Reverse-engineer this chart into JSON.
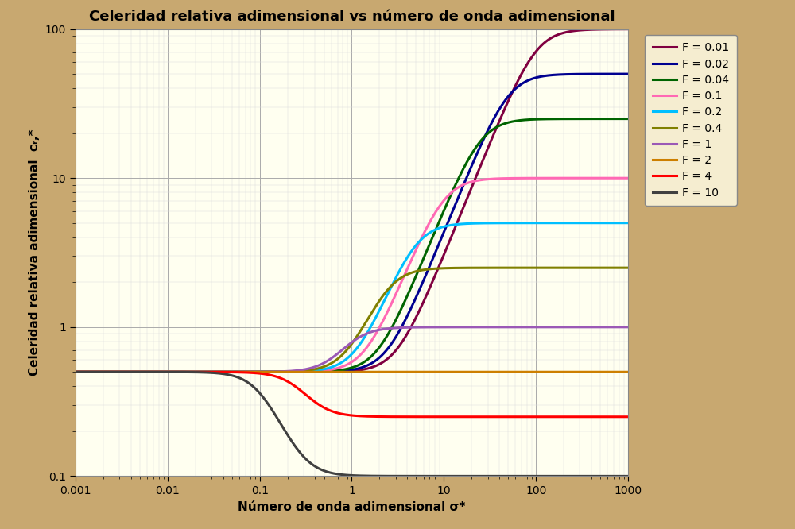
{
  "title": "Celeridad relativa adimensional vs número de onda adimensional",
  "xlabel": "Número de onda adimensional σ*",
  "ylabel": "Celeridad relativa adimensional  cᵣ,*",
  "F_values": [
    0.01,
    0.02,
    0.04,
    0.1,
    0.2,
    0.4,
    1.0,
    2.0,
    4.0,
    10.0
  ],
  "F_labels": [
    "F = 0.01",
    "F = 0.02",
    "F = 0.04",
    "F = 0.1",
    "F = 0.2",
    "F = 0.4",
    "F = 1",
    "F = 2",
    "F = 4",
    "F = 10"
  ],
  "colors": [
    "#800040",
    "#000090",
    "#006400",
    "#FF69B4",
    "#00BFFF",
    "#808000",
    "#9B59B6",
    "#CD7F00",
    "#FF0000",
    "#404040"
  ],
  "xmin": 0.001,
  "xmax": 1000.0,
  "ymin": 0.1,
  "ymax": 100.0,
  "background_outer": "#C8A870",
  "background_inner": "#FFFFF0",
  "grid_major_color": "#AAAAAA",
  "grid_minor_color": "#DDDDDD",
  "title_fontsize": 13,
  "axis_label_fontsize": 11,
  "legend_fontsize": 10,
  "line_width": 2.2,
  "sigmoid_steepness": 3.5
}
